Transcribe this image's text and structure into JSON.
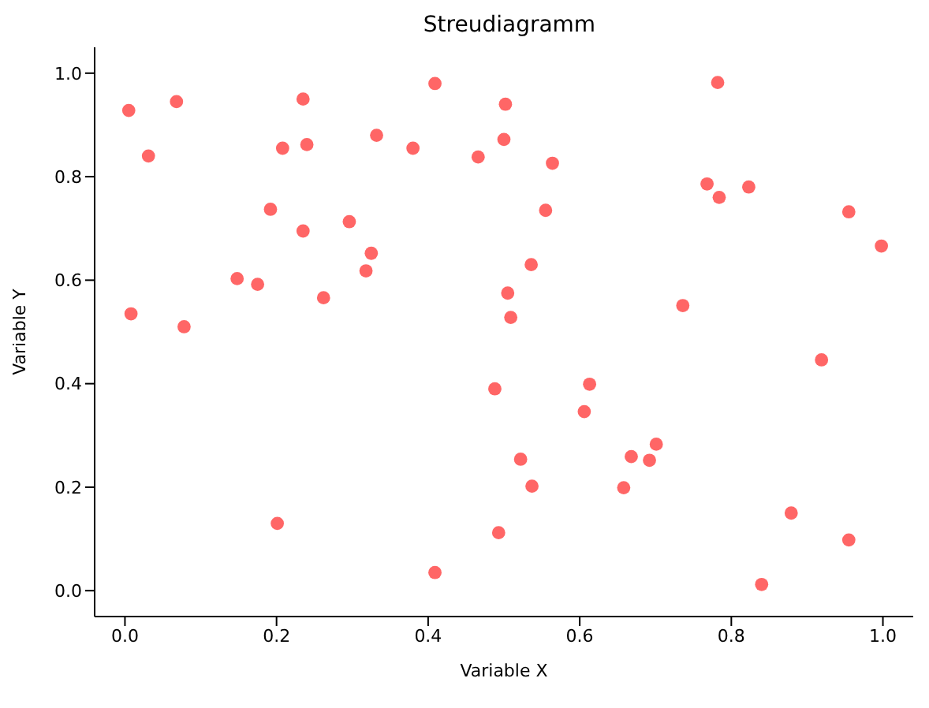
{
  "chart_data": {
    "type": "scatter",
    "title": "Streudiagramm",
    "xlabel": "Variable X",
    "ylabel": "Variable Y",
    "marker": "circle",
    "xlim": [
      -0.04,
      1.04
    ],
    "ylim": [
      -0.05,
      1.05
    ],
    "xticks": [
      {
        "value": 0,
        "label": "0.0"
      },
      {
        "value": 0.2,
        "label": "0.2"
      },
      {
        "value": 0.4,
        "label": "0.4"
      },
      {
        "value": 0.6,
        "label": "0.6"
      },
      {
        "value": 0.8,
        "label": "0.8"
      },
      {
        "value": 1,
        "label": "1.0"
      }
    ],
    "yticks": [
      {
        "value": 0,
        "label": "0.0"
      },
      {
        "value": 0.2,
        "label": "0.2"
      },
      {
        "value": 0.4,
        "label": "0.4"
      },
      {
        "value": 0.6,
        "label": "0.6"
      },
      {
        "value": 0.8,
        "label": "0.8"
      },
      {
        "value": 1,
        "label": "1.0"
      }
    ],
    "x": [
      0.005,
      0.068,
      0.031,
      0.008,
      0.078,
      0.148,
      0.175,
      0.192,
      0.201,
      0.208,
      0.235,
      0.24,
      0.235,
      0.262,
      0.296,
      0.318,
      0.325,
      0.332,
      0.38,
      0.409,
      0.409,
      0.466,
      0.488,
      0.493,
      0.5,
      0.502,
      0.505,
      0.509,
      0.522,
      0.536,
      0.537,
      0.555,
      0.564,
      0.606,
      0.613,
      0.658,
      0.668,
      0.692,
      0.701,
      0.736,
      0.768,
      0.782,
      0.784,
      0.823,
      0.84,
      0.879,
      0.919,
      0.955,
      0.955,
      0.998
    ],
    "series": [
      {
        "color": "#ff6666",
        "values": [
          0.928,
          0.945,
          0.84,
          0.535,
          0.51,
          0.603,
          0.592,
          0.737,
          0.13,
          0.855,
          0.95,
          0.862,
          0.695,
          0.566,
          0.713,
          0.618,
          0.652,
          0.88,
          0.855,
          0.98,
          0.035,
          0.838,
          0.39,
          0.112,
          0.872,
          0.94,
          0.575,
          0.528,
          0.254,
          0.63,
          0.202,
          0.735,
          0.826,
          0.346,
          0.399,
          0.199,
          0.259,
          0.252,
          0.283,
          0.551,
          0.786,
          0.982,
          0.76,
          0.78,
          0.012,
          0.15,
          0.446,
          0.732,
          0.098,
          0.666
        ]
      }
    ]
  }
}
